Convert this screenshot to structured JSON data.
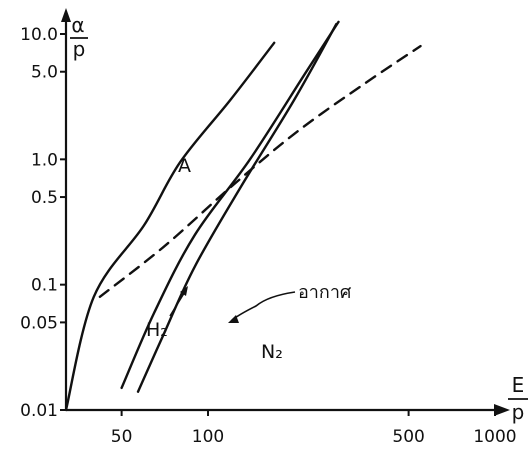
{
  "chart_data": {
    "type": "line",
    "scale": {
      "x": "log",
      "y": "log"
    },
    "xlim": [
      32,
      1000
    ],
    "ylim": [
      0.01,
      10.0
    ],
    "x_tick_labels": [
      "50",
      "100",
      "500",
      "1000"
    ],
    "x_ticks": [
      50,
      100,
      500,
      1000
    ],
    "y_tick_labels": [
      "0.01",
      "0.05",
      "0.1",
      "0.5",
      "1.0",
      "5.0",
      "10.0"
    ],
    "y_ticks": [
      0.01,
      0.05,
      0.1,
      0.5,
      1.0,
      5.0,
      10.0
    ],
    "xlabel": {
      "top": "E",
      "bottom": "p"
    },
    "ylabel": {
      "top": "α",
      "bottom": "p"
    },
    "series": [
      {
        "name": "A",
        "style": "solid",
        "points": [
          [
            32,
            0.01
          ],
          [
            40,
            0.08
          ],
          [
            60,
            0.3
          ],
          [
            80,
            0.95
          ],
          [
            120,
            3.0
          ],
          [
            170,
            8.5
          ]
        ]
      },
      {
        "name": "N₂",
        "style": "solid",
        "points": [
          [
            57,
            0.014
          ],
          [
            70,
            0.04
          ],
          [
            90,
            0.14
          ],
          [
            130,
            0.6
          ],
          [
            200,
            3.0
          ],
          [
            280,
            12.0
          ]
        ]
      },
      {
        "name": "อากาศ",
        "style": "solid",
        "points": [
          [
            50,
            0.015
          ],
          [
            65,
            0.06
          ],
          [
            90,
            0.25
          ],
          [
            140,
            1.0
          ],
          [
            220,
            5.0
          ],
          [
            285,
            12.5
          ]
        ]
      },
      {
        "name": "H₂",
        "style": "dashed",
        "points": [
          [
            42,
            0.08
          ],
          [
            70,
            0.2
          ],
          [
            120,
            0.6
          ],
          [
            200,
            1.6
          ],
          [
            350,
            4.0
          ],
          [
            550,
            8.0
          ]
        ]
      }
    ]
  }
}
